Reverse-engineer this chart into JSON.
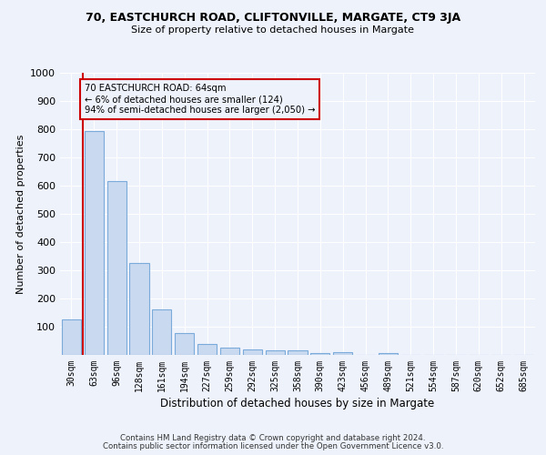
{
  "title1": "70, EASTCHURCH ROAD, CLIFTONVILLE, MARGATE, CT9 3JA",
  "title2": "Size of property relative to detached houses in Margate",
  "xlabel": "Distribution of detached houses by size in Margate",
  "ylabel": "Number of detached properties",
  "bar_color": "#c9d9f0",
  "bar_edge_color": "#7aabdb",
  "categories": [
    "30sqm",
    "63sqm",
    "96sqm",
    "128sqm",
    "161sqm",
    "194sqm",
    "227sqm",
    "259sqm",
    "292sqm",
    "325sqm",
    "358sqm",
    "390sqm",
    "423sqm",
    "456sqm",
    "489sqm",
    "521sqm",
    "554sqm",
    "587sqm",
    "620sqm",
    "652sqm",
    "685sqm"
  ],
  "values": [
    125,
    795,
    617,
    327,
    162,
    78,
    40,
    27,
    20,
    16,
    15,
    8,
    10,
    0,
    8,
    0,
    0,
    0,
    0,
    0,
    0
  ],
  "ylim": [
    0,
    1000
  ],
  "yticks": [
    0,
    100,
    200,
    300,
    400,
    500,
    600,
    700,
    800,
    900,
    1000
  ],
  "property_line_color": "#cc0000",
  "annotation_line1": "70 EASTCHURCH ROAD: 64sqm",
  "annotation_line2": "← 6% of detached houses are smaller (124)",
  "annotation_line3": "94% of semi-detached houses are larger (2,050) →",
  "annotation_box_color": "#cc0000",
  "footnote1": "Contains HM Land Registry data © Crown copyright and database right 2024.",
  "footnote2": "Contains public sector information licensed under the Open Government Licence v3.0.",
  "background_color": "#eef2fb",
  "grid_color": "#ffffff"
}
